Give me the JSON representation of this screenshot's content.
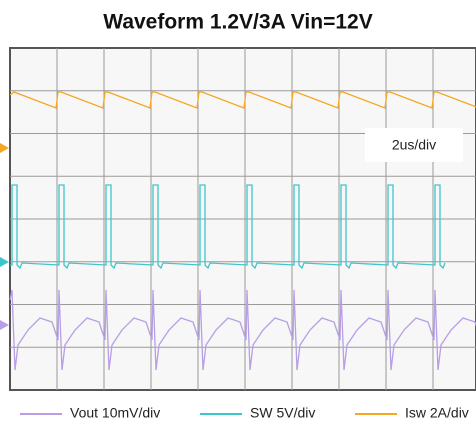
{
  "title": "Waveform 1.2V/3A Vin=12V",
  "annotation": "2us/div",
  "legend": [
    {
      "label": "Vout 10mV/div",
      "color": "#b79ee6"
    },
    {
      "label": "SW 5V/div",
      "color": "#3cc6cc"
    },
    {
      "label": "Isw 2A/div",
      "color": "#f5a623"
    }
  ]
}
